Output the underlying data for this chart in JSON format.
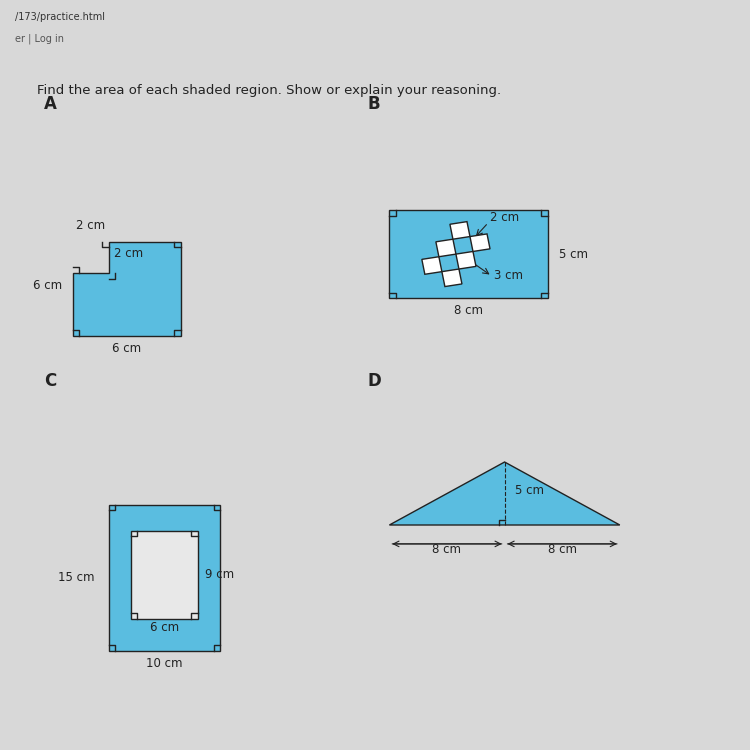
{
  "bg_color": "#d8d8d8",
  "page_color": "#f0f0f0",
  "browser_top_color": "#c8c8c8",
  "browser_bottom_color": "#3a3a3a",
  "shade_color": "#5abde0",
  "white_color": "#ffffff",
  "dark_color": "#222222",
  "title_text": "Find the area of each shaded region. Show or explain your reasoning.",
  "title_fontsize": 9.5,
  "label_fontsize": 12,
  "dim_fontsize": 8.5,
  "label_A": "A",
  "label_B": "B",
  "label_C": "C",
  "label_D": "D",
  "A_labels": [
    "2 cm",
    "2 cm",
    "6 cm",
    "6 cm"
  ],
  "B_labels": [
    "2 cm",
    "3 cm",
    "5 cm",
    "8 cm"
  ],
  "C_labels": [
    "15 cm",
    "9 cm",
    "6 cm",
    "10 cm"
  ],
  "D_labels": [
    "8 cm",
    "8 cm",
    "5 cm"
  ],
  "url_text": "/173/practice.html",
  "login_text": "er | Log in"
}
